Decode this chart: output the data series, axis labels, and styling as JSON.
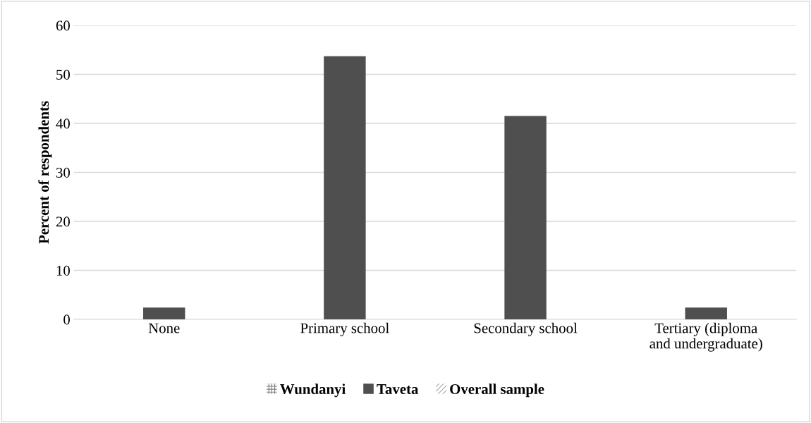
{
  "chart_data": {
    "type": "bar",
    "ylabel": "Percent of respondents",
    "categories": [
      "None",
      "Primary school",
      "Secondary school",
      "Tertiary (diploma\nand undergraduate)"
    ],
    "series": [
      {
        "name": "Wundanyi",
        "color": "#7f7f7f",
        "values": [
          null,
          null,
          null,
          null
        ]
      },
      {
        "name": "Taveta",
        "color": "#4f4f4f",
        "values": [
          2.4,
          53.7,
          41.5,
          2.4
        ]
      },
      {
        "name": "Overall sample",
        "color": "#a6a6a6",
        "values": [
          null,
          null,
          null,
          null
        ]
      }
    ],
    "ylim": [
      0,
      60
    ],
    "yticks": [
      0,
      10,
      20,
      30,
      40,
      50,
      60
    ],
    "grid": "y",
    "legend": "bottom"
  }
}
